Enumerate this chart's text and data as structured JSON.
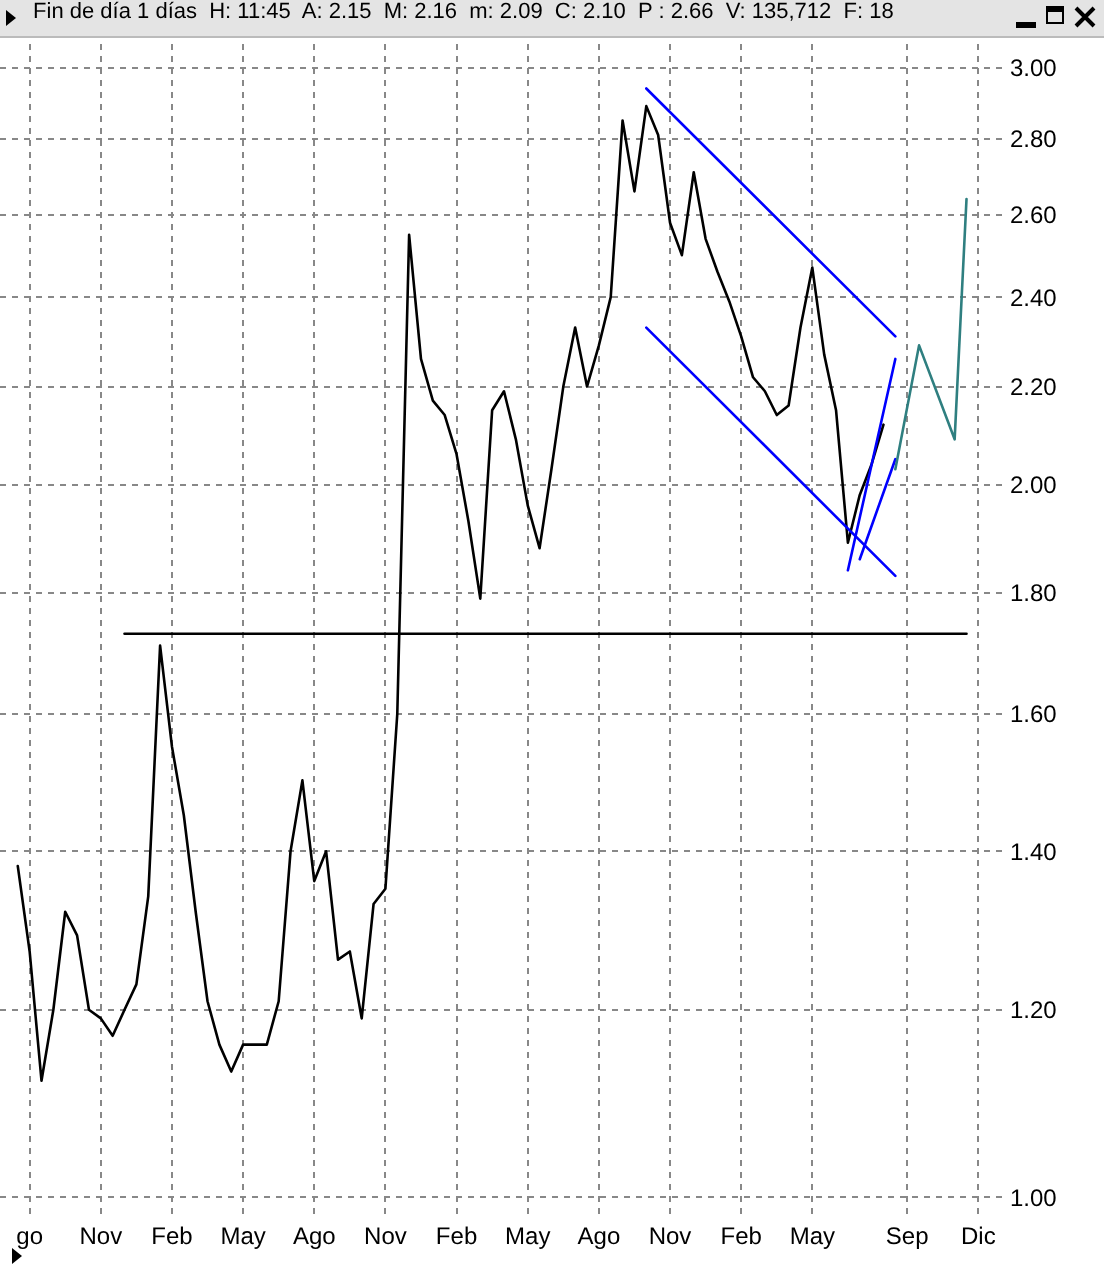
{
  "chart_data": {
    "type": "line",
    "title": "Fin de día 1 días  H: 11:45  A: 2.15  M: 2.16  m: 2.09  C: 2.10  P : 2.66  V: 135,712  F: 18",
    "log": "y",
    "grid": true,
    "marker": "none",
    "line_style": "solid",
    "categories": [
      null,
      null,
      "go",
      null,
      null,
      null,
      null,
      null,
      "Nov",
      null,
      null,
      null,
      null,
      null,
      "Feb",
      null,
      null,
      null,
      null,
      null,
      "May",
      null,
      null,
      null,
      null,
      null,
      "Ago",
      null,
      null,
      null,
      null,
      null,
      "Nov",
      null,
      null,
      null,
      null,
      null,
      "Feb",
      null,
      null,
      null,
      null,
      null,
      "May",
      null,
      null,
      null,
      null,
      null,
      "Ago",
      null,
      null,
      null,
      null,
      null,
      "Nov",
      null,
      null,
      null,
      null,
      null,
      "Feb",
      null,
      null,
      null,
      null,
      null,
      "May",
      null,
      null,
      null,
      null,
      null,
      null,
      null,
      "Sep",
      null,
      null,
      null,
      null,
      null,
      "Dic",
      null,
      null
    ],
    "ylim": [
      0.98,
      3.07
    ],
    "yticks": [
      {
        "value": 1,
        "label": "1.00"
      },
      {
        "value": 1.2,
        "label": "1.20"
      },
      {
        "value": 1.4,
        "label": "1.40"
      },
      {
        "value": 1.6,
        "label": "1.60"
      },
      {
        "value": 1.8,
        "label": "1.80"
      },
      {
        "value": 2,
        "label": "2.00"
      },
      {
        "value": 2.2,
        "label": "2.20"
      },
      {
        "value": 2.4,
        "label": "2.40"
      },
      {
        "value": 2.6,
        "label": "2.60"
      },
      {
        "value": 2.8,
        "label": "2.80"
      },
      {
        "value": 3,
        "label": "3.00"
      }
    ],
    "series": [
      {
        "color": "#000000",
        "values": [
          null,
          1.38,
          1.27,
          1.12,
          1.2,
          1.32,
          1.29,
          1.2,
          1.19,
          1.17,
          1.2,
          1.23,
          1.34,
          1.71,
          1.55,
          1.45,
          1.32,
          1.21,
          1.16,
          1.13,
          1.16,
          1.16,
          1.16,
          1.21,
          1.4,
          1.5,
          1.36,
          1.4,
          1.26,
          1.27,
          1.19,
          1.33,
          1.35,
          1.6,
          2.55,
          2.26,
          2.17,
          2.14,
          2.06,
          1.93,
          1.79,
          2.15,
          2.19,
          2.09,
          1.96,
          1.88,
          2.03,
          2.2,
          2.33,
          2.2,
          2.29,
          2.4,
          2.85,
          2.66,
          2.89,
          2.81,
          2.58,
          2.5,
          2.71,
          2.54,
          2.46,
          2.39,
          2.31,
          2.22,
          2.19,
          2.14,
          2.16,
          2.33,
          2.47,
          2.27,
          2.15,
          1.89,
          1.98,
          2.04,
          2.12,
          null,
          null,
          null,
          null,
          null,
          null,
          null,
          null,
          null,
          null
        ]
      },
      {
        "type": "line",
        "color": "#000000",
        "values": [
          null,
          null,
          null,
          null,
          null,
          null,
          null,
          null,
          null,
          null,
          1.73,
          null,
          null,
          null,
          null,
          null,
          null,
          null,
          null,
          null,
          null,
          null,
          null,
          null,
          null,
          null,
          null,
          null,
          null,
          null,
          null,
          null,
          null,
          null,
          null,
          null,
          null,
          null,
          null,
          null,
          null,
          null,
          null,
          null,
          null,
          null,
          null,
          null,
          null,
          null,
          null,
          null,
          null,
          null,
          null,
          null,
          null,
          null,
          null,
          null,
          null,
          null,
          null,
          null,
          null,
          null,
          null,
          null,
          null,
          null,
          null,
          null,
          null,
          null,
          null,
          null,
          null,
          null,
          null,
          null,
          null,
          1.73,
          null,
          null,
          null
        ]
      },
      {
        "type": "line",
        "color": "#0000ff",
        "values": [
          null,
          null,
          null,
          null,
          null,
          null,
          null,
          null,
          null,
          null,
          null,
          null,
          null,
          null,
          null,
          null,
          null,
          null,
          null,
          null,
          null,
          null,
          null,
          null,
          null,
          null,
          null,
          null,
          null,
          null,
          null,
          null,
          null,
          null,
          null,
          null,
          null,
          null,
          null,
          null,
          null,
          null,
          null,
          null,
          null,
          null,
          null,
          null,
          null,
          null,
          null,
          null,
          null,
          null,
          2.94,
          null,
          null,
          null,
          null,
          null,
          null,
          null,
          null,
          null,
          null,
          null,
          null,
          null,
          null,
          null,
          null,
          null,
          null,
          null,
          null,
          2.31,
          null,
          null,
          null,
          null,
          null,
          null,
          null,
          null,
          null
        ]
      },
      {
        "type": "line",
        "color": "#0000ff",
        "values": [
          null,
          null,
          null,
          null,
          null,
          null,
          null,
          null,
          null,
          null,
          null,
          null,
          null,
          null,
          null,
          null,
          null,
          null,
          null,
          null,
          null,
          null,
          null,
          null,
          null,
          null,
          null,
          null,
          null,
          null,
          null,
          null,
          null,
          null,
          null,
          null,
          null,
          null,
          null,
          null,
          null,
          null,
          null,
          null,
          null,
          null,
          null,
          null,
          null,
          null,
          null,
          null,
          null,
          null,
          2.33,
          null,
          null,
          null,
          null,
          null,
          null,
          null,
          null,
          null,
          null,
          null,
          null,
          null,
          null,
          null,
          null,
          null,
          null,
          null,
          null,
          1.83,
          null,
          null,
          null,
          null,
          null,
          null,
          null,
          null,
          null
        ]
      },
      {
        "type": "line",
        "color": "#0000ff",
        "values": [
          null,
          null,
          null,
          null,
          null,
          null,
          null,
          null,
          null,
          null,
          null,
          null,
          null,
          null,
          null,
          null,
          null,
          null,
          null,
          null,
          null,
          null,
          null,
          null,
          null,
          null,
          null,
          null,
          null,
          null,
          null,
          null,
          null,
          null,
          null,
          null,
          null,
          null,
          null,
          null,
          null,
          null,
          null,
          null,
          null,
          null,
          null,
          null,
          null,
          null,
          null,
          null,
          null,
          null,
          null,
          null,
          null,
          null,
          null,
          null,
          null,
          null,
          null,
          null,
          null,
          null,
          null,
          null,
          null,
          null,
          null,
          1.84,
          null,
          null,
          null,
          2.26,
          null,
          null,
          null,
          null,
          null,
          null,
          null,
          null,
          null
        ]
      },
      {
        "type": "line",
        "color": "#0000ff",
        "values": [
          null,
          null,
          null,
          null,
          null,
          null,
          null,
          null,
          null,
          null,
          null,
          null,
          null,
          null,
          null,
          null,
          null,
          null,
          null,
          null,
          null,
          null,
          null,
          null,
          null,
          null,
          null,
          null,
          null,
          null,
          null,
          null,
          null,
          null,
          null,
          null,
          null,
          null,
          null,
          null,
          null,
          null,
          null,
          null,
          null,
          null,
          null,
          null,
          null,
          null,
          null,
          null,
          null,
          null,
          null,
          null,
          null,
          null,
          null,
          null,
          null,
          null,
          null,
          null,
          null,
          null,
          null,
          null,
          null,
          null,
          null,
          null,
          1.86,
          null,
          null,
          2.05,
          null,
          null,
          null,
          null,
          null,
          null,
          null,
          null,
          null
        ]
      },
      {
        "type": "line",
        "color": "#2f7f80",
        "values": [
          null,
          null,
          null,
          null,
          null,
          null,
          null,
          null,
          null,
          null,
          null,
          null,
          null,
          null,
          null,
          null,
          null,
          null,
          null,
          null,
          null,
          null,
          null,
          null,
          null,
          null,
          null,
          null,
          null,
          null,
          null,
          null,
          null,
          null,
          null,
          null,
          null,
          null,
          null,
          null,
          null,
          null,
          null,
          null,
          null,
          null,
          null,
          null,
          null,
          null,
          null,
          null,
          null,
          null,
          null,
          null,
          null,
          null,
          null,
          null,
          null,
          null,
          null,
          null,
          null,
          null,
          null,
          null,
          null,
          null,
          null,
          null,
          null,
          null,
          null,
          2.03,
          null,
          2.29,
          null,
          null,
          2.09,
          2.64,
          null,
          null,
          null
        ]
      }
    ]
  }
}
